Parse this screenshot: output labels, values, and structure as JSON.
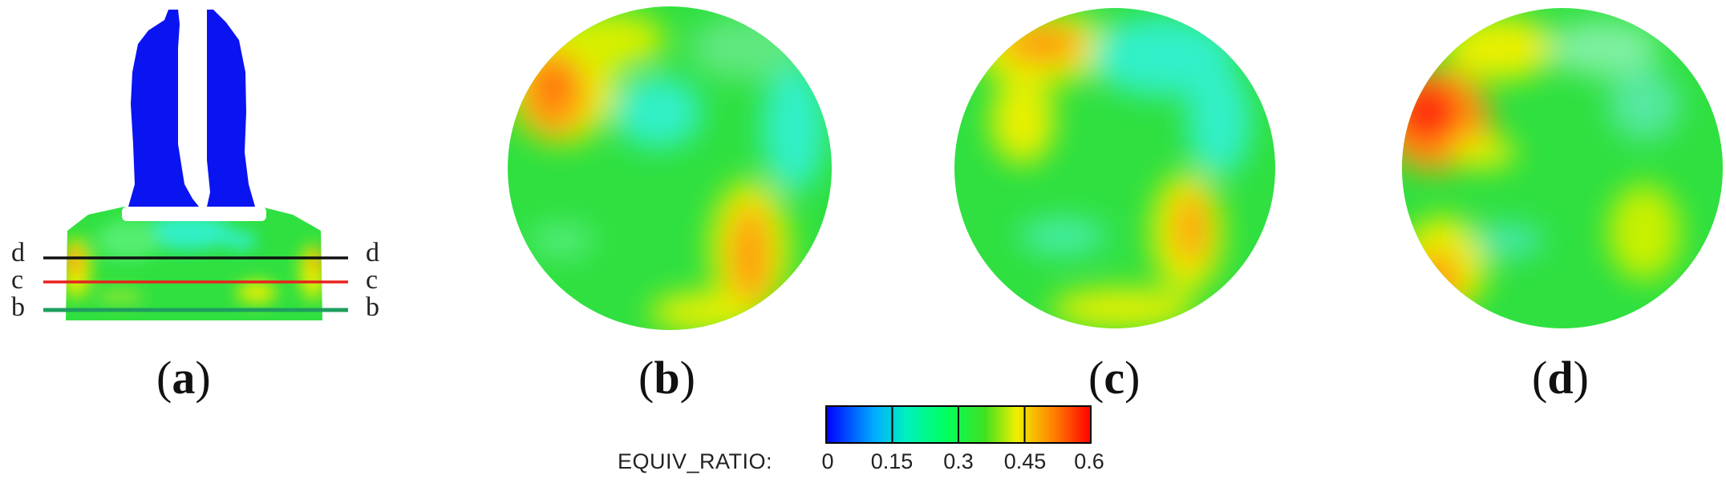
{
  "panels": [
    {
      "id": "a",
      "label": "a"
    },
    {
      "id": "b",
      "label": "b"
    },
    {
      "id": "c",
      "label": "c"
    },
    {
      "id": "d",
      "label": "d"
    }
  ],
  "section_lines": [
    {
      "name": "d",
      "left": "d",
      "right": "d",
      "color": "#111111"
    },
    {
      "name": "c",
      "left": "c",
      "right": "c",
      "color": "#e8231e"
    },
    {
      "name": "b",
      "left": "b",
      "right": "b",
      "color": "#1f9e5e"
    }
  ],
  "colorbar": {
    "title": "EQUIV_RATIO:",
    "ticks": [
      "0",
      "0.15",
      "0.3",
      "0.45",
      "0.6"
    ],
    "min": 0,
    "max": 0.6,
    "colors": [
      "#0000ff",
      "#00c8ff",
      "#00ff80",
      "#20e020",
      "#ffff00",
      "#ff8000",
      "#ff0000"
    ]
  },
  "colors": {
    "valve": "#0a14f0",
    "base_green": "#2fe040",
    "cyan": "#33f0c8",
    "yellow": "#e8f000",
    "orange": "#ff9a10",
    "red": "#ff2a10"
  }
}
